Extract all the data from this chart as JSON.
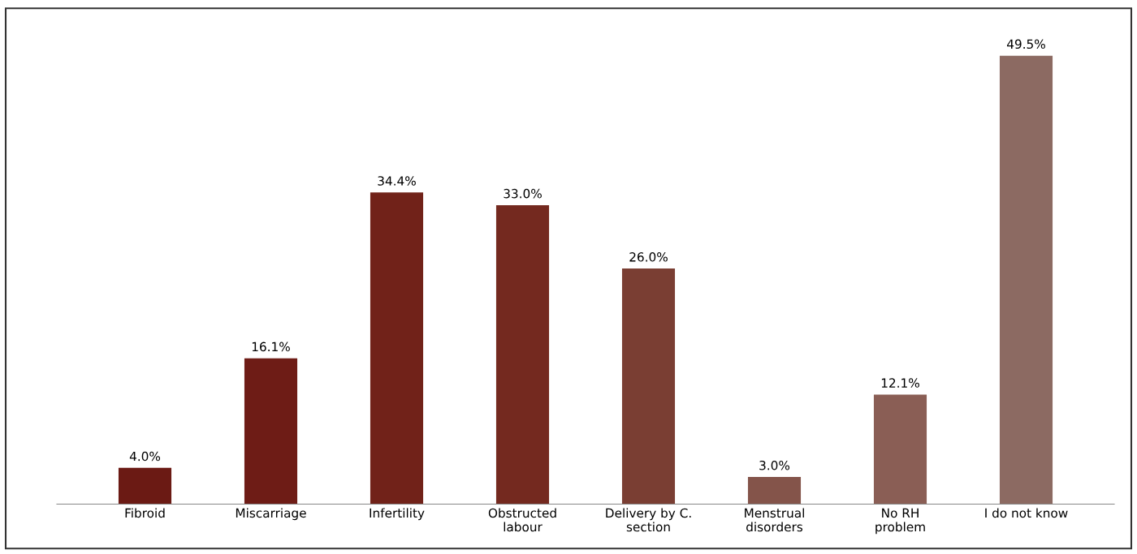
{
  "chart_data": {
    "type": "bar",
    "categories": [
      "Fibroid",
      "Miscarriage",
      "Infertility",
      "Obstructed\nlabour",
      "Delivery by C.\nsection",
      "Menstrual\ndisorders",
      "No RH\nproblem",
      "I do not know"
    ],
    "values": [
      4.0,
      16.1,
      34.4,
      33.0,
      26.0,
      3.0,
      12.1,
      49.5
    ],
    "colors": [
      "#6b1a14",
      "#6e1c16",
      "#712219",
      "#74291f",
      "#7a3e33",
      "#84544a",
      "#8a5e55",
      "#8c6a62"
    ],
    "value_labels": [
      "4.0%",
      "16.1%",
      "34.4%",
      "33.0%",
      "26.0%",
      "3.0%",
      "12.1%",
      "49.5%"
    ],
    "grid": false,
    "legend": false
  }
}
